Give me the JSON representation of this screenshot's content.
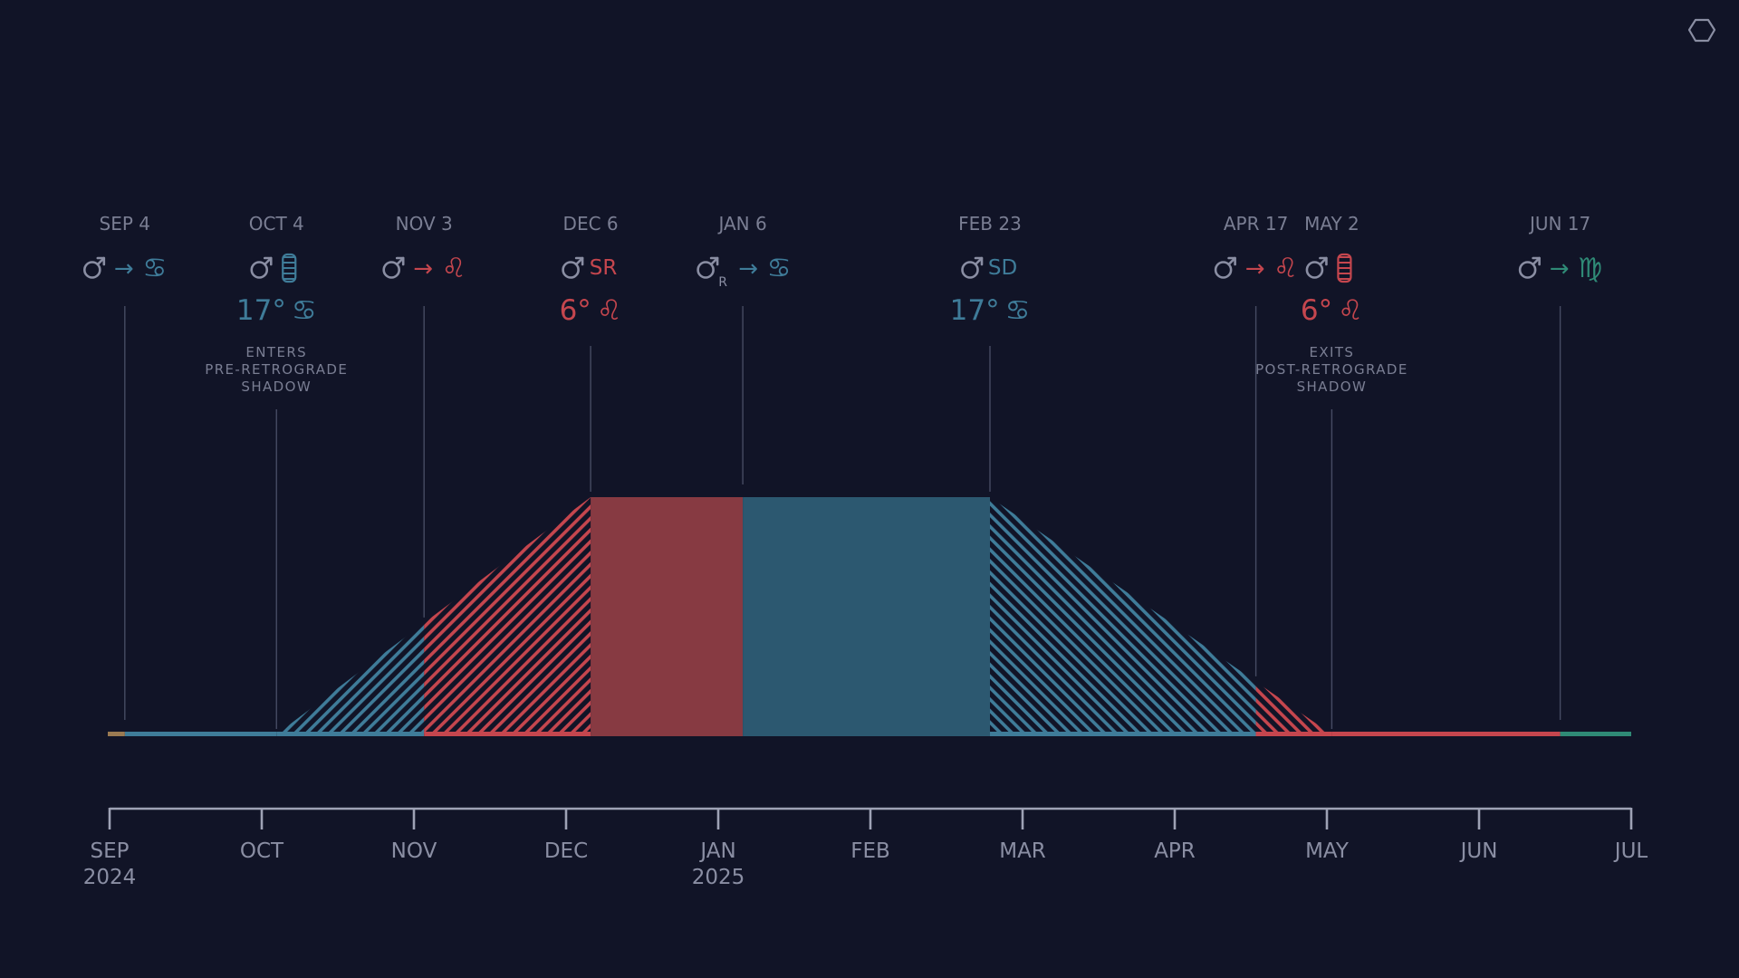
{
  "colors": {
    "background": "#111427",
    "cancer": "#3f7c99",
    "leo": "#c5464e",
    "virgo": "#2f8a76",
    "gemini": "#9a7a52",
    "neutral": "#8a8ea3",
    "label": "#7a7e93",
    "guide": "#464b63",
    "axis": "#9ea2b5",
    "retrograde_leo_fill": "#873a42",
    "retrograde_cancer_fill": "#2c5870"
  },
  "corner_icon": {
    "name": "hexagon-icon"
  },
  "events": [
    {
      "date": "SEP 4",
      "planet": "♂",
      "planet_sub": "",
      "arrow": "→",
      "tail": "♋",
      "tail_color": "cancer",
      "degree": "",
      "degree_sign": "",
      "degree_color": "",
      "note": []
    },
    {
      "date": "OCT 4",
      "planet": "♂",
      "planet_sub": "",
      "arrow": "",
      "tail": "shadow-icon",
      "tail_color": "cancer",
      "degree": "17°",
      "degree_sign": "♋",
      "degree_color": "cancer",
      "note": [
        "ENTERS",
        "PRE-RETROGRADE",
        "SHADOW"
      ]
    },
    {
      "date": "NOV 3",
      "planet": "♂",
      "planet_sub": "",
      "arrow": "→",
      "tail": "♌",
      "tail_color": "leo",
      "degree": "",
      "degree_sign": "",
      "degree_color": "",
      "note": []
    },
    {
      "date": "DEC 6",
      "planet": "♂",
      "planet_sub": "",
      "arrow": "",
      "tail": "SR",
      "tail_color": "leo",
      "degree": "6°",
      "degree_sign": "♌",
      "degree_color": "leo",
      "note": []
    },
    {
      "date": "JAN 6",
      "planet": "♂",
      "planet_sub": "R",
      "arrow": "→",
      "tail": "♋",
      "tail_color": "cancer",
      "degree": "",
      "degree_sign": "",
      "degree_color": "",
      "note": []
    },
    {
      "date": "FEB 23",
      "planet": "♂",
      "planet_sub": "",
      "arrow": "",
      "tail": "SD",
      "tail_color": "cancer",
      "degree": "17°",
      "degree_sign": "♋",
      "degree_color": "cancer",
      "note": []
    },
    {
      "date": "APR 17",
      "planet": "♂",
      "planet_sub": "",
      "arrow": "→",
      "tail": "♌",
      "tail_color": "leo",
      "degree": "",
      "degree_sign": "",
      "degree_color": "",
      "note": []
    },
    {
      "date": "MAY 2",
      "planet": "♂",
      "planet_sub": "",
      "arrow": "",
      "tail": "shadow-icon",
      "tail_color": "leo",
      "degree": "6°",
      "degree_sign": "♌",
      "degree_color": "leo",
      "note": [
        "EXITS",
        "POST-RETROGRADE",
        "SHADOW"
      ]
    },
    {
      "date": "JUN 17",
      "planet": "♂",
      "planet_sub": "",
      "arrow": "→",
      "tail": "♍",
      "tail_color": "virgo",
      "degree": "",
      "degree_sign": "",
      "degree_color": "",
      "note": []
    }
  ],
  "phases": [
    {
      "from": "2024-09-04",
      "to": "2024-10-04",
      "sign": "cancer",
      "kind": "baseline"
    },
    {
      "from": "2024-10-04",
      "to": "2024-11-03",
      "sign": "cancer",
      "kind": "shadow-rise"
    },
    {
      "from": "2024-11-03",
      "to": "2024-12-06",
      "sign": "leo",
      "kind": "shadow-rise"
    },
    {
      "from": "2024-12-06",
      "to": "2025-01-06",
      "sign": "leo",
      "kind": "retrograde"
    },
    {
      "from": "2025-01-06",
      "to": "2025-02-23",
      "sign": "cancer",
      "kind": "retrograde"
    },
    {
      "from": "2025-02-23",
      "to": "2025-04-17",
      "sign": "cancer",
      "kind": "shadow-fall"
    },
    {
      "from": "2025-04-17",
      "to": "2025-05-02",
      "sign": "leo",
      "kind": "shadow-fall"
    },
    {
      "from": "2025-05-02",
      "to": "2025-06-17",
      "sign": "leo",
      "kind": "baseline"
    },
    {
      "from": "2025-06-17",
      "to": "2025-07-01",
      "sign": "virgo",
      "kind": "baseline"
    }
  ],
  "axis": {
    "ticks": [
      {
        "label": "SEP",
        "year": "2024"
      },
      {
        "label": "OCT",
        "year": ""
      },
      {
        "label": "NOV",
        "year": ""
      },
      {
        "label": "DEC",
        "year": ""
      },
      {
        "label": "JAN",
        "year": "2025"
      },
      {
        "label": "FEB",
        "year": ""
      },
      {
        "label": "MAR",
        "year": ""
      },
      {
        "label": "APR",
        "year": ""
      },
      {
        "label": "MAY",
        "year": ""
      },
      {
        "label": "JUN",
        "year": ""
      },
      {
        "label": "JUL",
        "year": ""
      }
    ]
  }
}
